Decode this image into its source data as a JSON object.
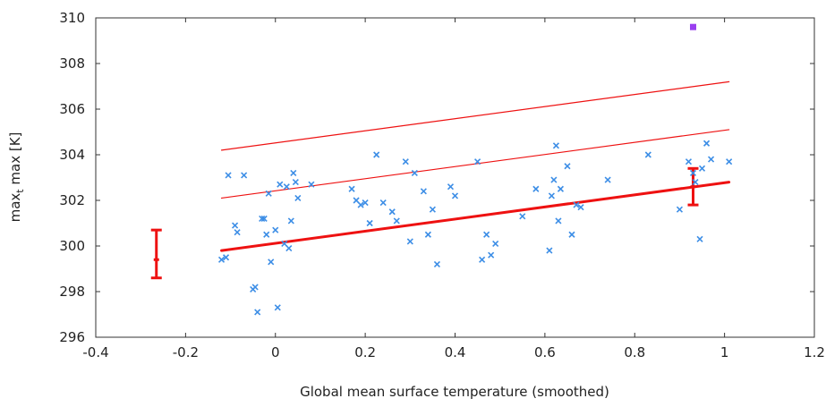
{
  "chart_data": {
    "type": "scatter",
    "xlabel": "Global mean surface temperature (smoothed)",
    "ylabel": "max",
    "ylabel_sub": "t",
    "ylabel_rest": " max [K]",
    "xlim": [
      -0.4,
      1.2
    ],
    "ylim": [
      296,
      310
    ],
    "xticks": [
      "-0.4",
      "-0.2",
      "0",
      "0.2",
      "0.4",
      "0.6",
      "0.8",
      "1",
      "1.2"
    ],
    "yticks": [
      "296",
      "298",
      "300",
      "302",
      "304",
      "306",
      "308",
      "310"
    ],
    "grid": false,
    "colors": {
      "points": "#3d8ee6",
      "fit": "#ee1111",
      "highlight": "#9a3ff0",
      "axis": "#333333"
    },
    "series": [
      {
        "type": "scatter",
        "points": [
          [
            -0.12,
            299.4
          ],
          [
            -0.11,
            299.5
          ],
          [
            -0.105,
            303.1
          ],
          [
            -0.09,
            300.9
          ],
          [
            -0.085,
            300.6
          ],
          [
            -0.07,
            303.1
          ],
          [
            -0.05,
            298.1
          ],
          [
            -0.045,
            298.2
          ],
          [
            -0.04,
            297.1
          ],
          [
            -0.03,
            301.2
          ],
          [
            -0.025,
            301.2
          ],
          [
            -0.02,
            300.5
          ],
          [
            -0.015,
            302.3
          ],
          [
            -0.01,
            299.3
          ],
          [
            0.0,
            300.7
          ],
          [
            0.005,
            297.3
          ],
          [
            0.01,
            302.7
          ],
          [
            0.02,
            300.1
          ],
          [
            0.025,
            302.6
          ],
          [
            0.03,
            299.9
          ],
          [
            0.035,
            301.1
          ],
          [
            0.04,
            303.2
          ],
          [
            0.045,
            302.8
          ],
          [
            0.05,
            302.1
          ],
          [
            0.08,
            302.7
          ],
          [
            0.17,
            302.5
          ],
          [
            0.18,
            302.0
          ],
          [
            0.19,
            301.8
          ],
          [
            0.2,
            301.9
          ],
          [
            0.21,
            301.0
          ],
          [
            0.225,
            304.0
          ],
          [
            0.24,
            301.9
          ],
          [
            0.26,
            301.5
          ],
          [
            0.27,
            301.1
          ],
          [
            0.29,
            303.7
          ],
          [
            0.3,
            300.2
          ],
          [
            0.31,
            303.2
          ],
          [
            0.33,
            302.4
          ],
          [
            0.34,
            300.5
          ],
          [
            0.35,
            301.6
          ],
          [
            0.36,
            299.2
          ],
          [
            0.39,
            302.6
          ],
          [
            0.4,
            302.2
          ],
          [
            0.45,
            303.7
          ],
          [
            0.46,
            299.4
          ],
          [
            0.47,
            300.5
          ],
          [
            0.48,
            299.6
          ],
          [
            0.49,
            300.1
          ],
          [
            0.55,
            301.3
          ],
          [
            0.58,
            302.5
          ],
          [
            0.61,
            299.8
          ],
          [
            0.615,
            302.2
          ],
          [
            0.62,
            302.9
          ],
          [
            0.625,
            304.4
          ],
          [
            0.63,
            301.1
          ],
          [
            0.635,
            302.5
          ],
          [
            0.65,
            303.5
          ],
          [
            0.66,
            300.5
          ],
          [
            0.67,
            301.8
          ],
          [
            0.68,
            301.7
          ],
          [
            0.74,
            302.9
          ],
          [
            0.83,
            304.0
          ],
          [
            0.9,
            301.6
          ],
          [
            0.92,
            303.7
          ],
          [
            0.93,
            303.2
          ],
          [
            0.935,
            302.8
          ],
          [
            0.945,
            300.3
          ],
          [
            0.95,
            303.4
          ],
          [
            0.96,
            304.5
          ],
          [
            0.97,
            303.8
          ],
          [
            1.01,
            303.7
          ]
        ]
      },
      {
        "type": "line",
        "style": "thick",
        "x": [
          -0.12,
          1.01
        ],
        "y": [
          299.8,
          302.8
        ]
      },
      {
        "type": "line",
        "style": "thin",
        "x": [
          -0.12,
          1.01
        ],
        "y": [
          302.1,
          305.1
        ]
      },
      {
        "type": "line",
        "style": "thin",
        "x": [
          -0.12,
          1.01
        ],
        "y": [
          304.2,
          307.2
        ]
      },
      {
        "type": "errorbar",
        "x": -0.265,
        "center": 299.4,
        "low": 298.6,
        "high": 300.7
      },
      {
        "type": "errorbar",
        "x": 0.93,
        "center": 302.6,
        "low": 301.8,
        "high": 303.4
      },
      {
        "type": "highlight-point",
        "x": 0.93,
        "y": 309.6
      }
    ]
  }
}
